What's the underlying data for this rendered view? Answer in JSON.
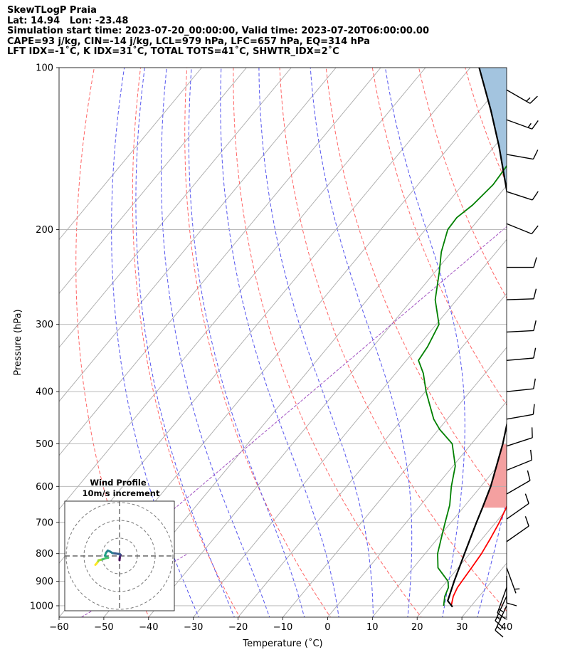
{
  "header": {
    "line1": "SkewTLogP Praia",
    "line2": "Lat: 14.94   Lon: -23.48",
    "line3": "Simulation start time: 2023-07-20_00:00:00, Valid time: 2023-07-20T06:00:00.00",
    "line4": "CAPE=93 j/kg, CIN=-14 j/kg, LCL=979 hPa, LFC=657 hPa, EQ=314 hPa",
    "line5": "LFT IDX=-1˚C, K IDX=31˚C, TOTAL TOTS=41˚C, SHWTR_IDX=2˚C"
  },
  "hodograph": {
    "title": "Wind Profile",
    "subtitle": "10m/s increment"
  },
  "chart_data": {
    "type": "line",
    "xlabel": "Temperature (˚C)",
    "ylabel": "Pressure (hPa)",
    "xlim": [
      -60,
      40
    ],
    "ylim": [
      1050,
      100
    ],
    "y_scale": "log",
    "x_ticks": [
      -60,
      -50,
      -40,
      -30,
      -20,
      -10,
      0,
      10,
      20,
      30,
      40
    ],
    "x_tick_labels": [
      "−60",
      "−50",
      "−40",
      "−30",
      "−20",
      "−10",
      "0",
      "10",
      "20",
      "30",
      "40"
    ],
    "y_ticks": [
      1000,
      900,
      800,
      700,
      600,
      500,
      400,
      300,
      200,
      100
    ],
    "y_tick_labels": [
      "1000",
      "900",
      "800",
      "700",
      "600",
      "500",
      "400",
      "300",
      "200",
      "100"
    ],
    "grid": true,
    "series": [
      {
        "color": "#ff0000",
        "points": [
          [
            1000,
            25.5
          ],
          [
            960,
            24.2
          ],
          [
            925,
            23.5
          ],
          [
            880,
            23.2
          ],
          [
            850,
            23.0
          ],
          [
            800,
            22.6
          ],
          [
            750,
            21.8
          ],
          [
            700,
            20.8
          ],
          [
            650,
            19.4
          ],
          [
            600,
            18.0
          ],
          [
            550,
            16.2
          ],
          [
            500,
            14.1
          ],
          [
            450,
            11.4
          ],
          [
            400,
            8.0
          ],
          [
            350,
            4.2
          ],
          [
            300,
            -0.4
          ],
          [
            250,
            -6.2
          ],
          [
            220,
            -10.8
          ],
          [
            200,
            -14.5
          ],
          [
            180,
            -18.5
          ],
          [
            160,
            -22.6
          ],
          [
            145,
            -26.5
          ],
          [
            130,
            -31.0
          ],
          [
            120,
            -33.6
          ],
          [
            115,
            -33.0
          ],
          [
            110,
            -33.2
          ],
          [
            105,
            -35.6
          ],
          [
            100,
            -38.2
          ]
        ]
      },
      {
        "color": "#008000",
        "points": [
          [
            1000,
            23.8
          ],
          [
            960,
            22.3
          ],
          [
            925,
            21.5
          ],
          [
            900,
            20.2
          ],
          [
            850,
            15.5
          ],
          [
            800,
            12.8
          ],
          [
            750,
            10.8
          ],
          [
            700,
            8.7
          ],
          [
            650,
            6.5
          ],
          [
            600,
            3.4
          ],
          [
            550,
            0.5
          ],
          [
            500,
            -4.3
          ],
          [
            470,
            -9.8
          ],
          [
            450,
            -13.0
          ],
          [
            420,
            -17.0
          ],
          [
            400,
            -19.8
          ],
          [
            370,
            -23.8
          ],
          [
            350,
            -27.3
          ],
          [
            330,
            -27.8
          ],
          [
            300,
            -29.4
          ],
          [
            270,
            -34.8
          ],
          [
            240,
            -39.0
          ],
          [
            220,
            -42.3
          ],
          [
            200,
            -45.0
          ],
          [
            190,
            -45.2
          ],
          [
            180,
            -44.0
          ],
          [
            165,
            -43.2
          ],
          [
            150,
            -43.7
          ],
          [
            140,
            -45.0
          ],
          [
            130,
            -48.0
          ],
          [
            120,
            -49.8
          ],
          [
            110,
            -50.0
          ],
          [
            105,
            -50.6
          ],
          [
            100,
            -51.6
          ]
        ]
      },
      {
        "color": "#000000",
        "points": [
          [
            1005,
            26.0
          ],
          [
            1000,
            25.6
          ],
          [
            979,
            23.8
          ],
          [
            900,
            21.6
          ],
          [
            800,
            18.8
          ],
          [
            700,
            15.7
          ],
          [
            657,
            14.3
          ],
          [
            600,
            12.2
          ],
          [
            500,
            7.0
          ],
          [
            450,
            3.6
          ],
          [
            400,
            -0.3
          ],
          [
            350,
            -5.2
          ],
          [
            314,
            -9.5
          ],
          [
            300,
            -11.4
          ],
          [
            250,
            -19.6
          ],
          [
            200,
            -30.4
          ],
          [
            180,
            -35.8
          ],
          [
            160,
            -42.0
          ],
          [
            140,
            -49.0
          ],
          [
            120,
            -57.5
          ],
          [
            100,
            -68.0
          ]
        ]
      }
    ],
    "shaded": [
      {
        "color": "#f4a0a0",
        "between": [
          500,
          657
        ]
      },
      {
        "color": "#a3c4df",
        "between": [
          100,
          314
        ]
      }
    ],
    "reference_lines": {
      "isotherms": {
        "color": "#aaaaaa",
        "values": [
          -130,
          -120,
          -110,
          -100,
          -90,
          -80,
          -70,
          -60,
          -50,
          -40,
          -30,
          -20,
          -10,
          0,
          10,
          20,
          30,
          40
        ]
      },
      "dry_adiabats": {
        "color": "#ff6666",
        "style": "dashed",
        "theta_K": [
          230,
          250,
          270,
          290,
          310,
          330,
          350,
          370,
          390,
          410,
          430,
          450,
          470
        ]
      },
      "moist_adiabats": {
        "color": "#5555ee",
        "style": "dashed",
        "start_temps_at_1000": [
          -32,
          -24,
          -16,
          -8,
          0,
          8,
          16,
          24,
          32
        ]
      },
      "mixing_ratio": {
        "color": "#a050c0",
        "style": "dashed"
      }
    },
    "wind_barbs": [
      {
        "p": 1000,
        "dir": 205,
        "spd": 15
      },
      {
        "p": 960,
        "dir": 205,
        "spd": 17
      },
      {
        "p": 925,
        "dir": 200,
        "spd": 15
      },
      {
        "p": 880,
        "dir": 180,
        "spd": 8
      },
      {
        "p": 850,
        "dir": 160,
        "spd": 4
      },
      {
        "p": 760,
        "dir": 55,
        "spd": 11
      },
      {
        "p": 690,
        "dir": 55,
        "spd": 10
      },
      {
        "p": 620,
        "dir": 60,
        "spd": 10
      },
      {
        "p": 560,
        "dir": 68,
        "spd": 10
      },
      {
        "p": 505,
        "dir": 72,
        "spd": 10
      },
      {
        "p": 450,
        "dir": 80,
        "spd": 10
      },
      {
        "p": 400,
        "dir": 84,
        "spd": 10
      },
      {
        "p": 350,
        "dir": 85,
        "spd": 10
      },
      {
        "p": 310,
        "dir": 87,
        "spd": 10
      },
      {
        "p": 270,
        "dir": 88,
        "spd": 10
      },
      {
        "p": 235,
        "dir": 90,
        "spd": 10
      },
      {
        "p": 195,
        "dir": 112,
        "spd": 10
      },
      {
        "p": 170,
        "dir": 108,
        "spd": 10
      },
      {
        "p": 145,
        "dir": 100,
        "spd": 10
      },
      {
        "p": 125,
        "dir": 110,
        "spd": 15
      },
      {
        "p": 110,
        "dir": 120,
        "spd": 15
      }
    ],
    "hodograph_points": [
      [
        0,
        -1.2
      ],
      [
        0,
        -1
      ],
      [
        0.05,
        -0.6
      ],
      [
        0.1,
        -0.2
      ],
      [
        0.2,
        0.1
      ],
      [
        0.3,
        0.3
      ],
      [
        0.1,
        0.5
      ],
      [
        -0.5,
        0.6
      ],
      [
        -1.2,
        0.7
      ],
      [
        -2.0,
        0.8
      ],
      [
        -2.6,
        1.2
      ],
      [
        -3.3,
        1.5
      ],
      [
        -3.8,
        0.9
      ],
      [
        -4.1,
        0.1
      ],
      [
        -3.7,
        -0.3
      ],
      [
        -3.2,
        -0.5
      ],
      [
        -3.8,
        -0.6
      ],
      [
        -4.6,
        -0.9
      ],
      [
        -5.3,
        -1.1
      ],
      [
        -5.9,
        -1.2
      ],
      [
        -6.0,
        -1.5
      ],
      [
        -6.3,
        -1.9
      ],
      [
        -6.6,
        -2.3
      ],
      [
        -6.8,
        -2.5
      ]
    ]
  }
}
